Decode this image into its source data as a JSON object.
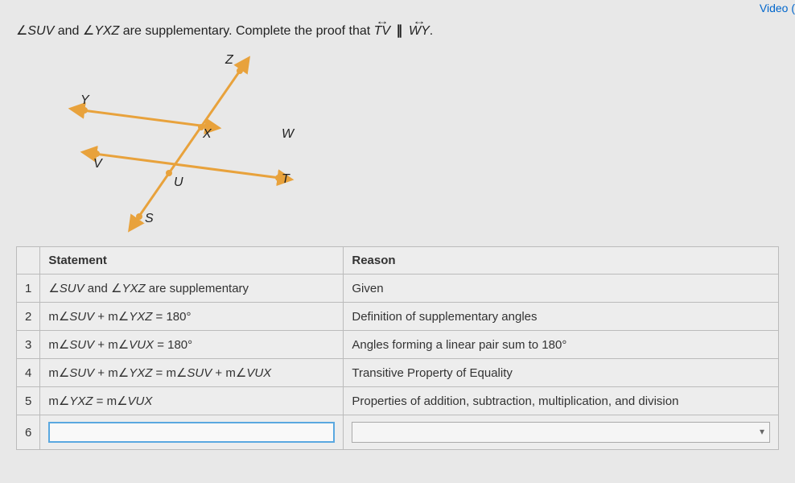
{
  "video_link": "Video (",
  "prompt": {
    "pre": "∠",
    "ang1": "SUV",
    "and": " and ",
    "ang2": "YXZ",
    "txt": " are supplementary. Complete the proof that ",
    "line1": "TV",
    "par": "∥",
    "line2": "WY",
    "end": "."
  },
  "diagram": {
    "labels": {
      "Z": "Z",
      "Y": "Y",
      "X": "X",
      "W": "W",
      "V": "V",
      "U": "U",
      "T": "T",
      "S": "S"
    },
    "colors": {
      "line": "#e8a23c",
      "point_fill": "#e8a23c"
    }
  },
  "headers": {
    "statement": "Statement",
    "reason": "Reason"
  },
  "rows": [
    {
      "n": "1",
      "s": "∠<i>SUV</i> and ∠<i>YXZ</i> are supplementary",
      "r": "Given"
    },
    {
      "n": "2",
      "s": "m∠<i>SUV</i> + m∠<i>YXZ</i> = 180°",
      "r": "Definition of supplementary angles"
    },
    {
      "n": "3",
      "s": "m∠<i>SUV</i> + m∠<i>VUX</i> = 180°",
      "r": "Angles forming a linear pair sum to 180°"
    },
    {
      "n": "4",
      "s": "m∠<i>SUV</i> + m∠<i>YXZ</i> = m∠<i>SUV</i> + m∠<i>VUX</i>",
      "r": "Transitive Property of Equality"
    },
    {
      "n": "5",
      "s": "m∠<i>YXZ</i> = m∠<i>VUX</i>",
      "r": "Properties of addition, subtraction, multiplication, and division"
    },
    {
      "n": "6",
      "s": "",
      "r": ""
    }
  ]
}
